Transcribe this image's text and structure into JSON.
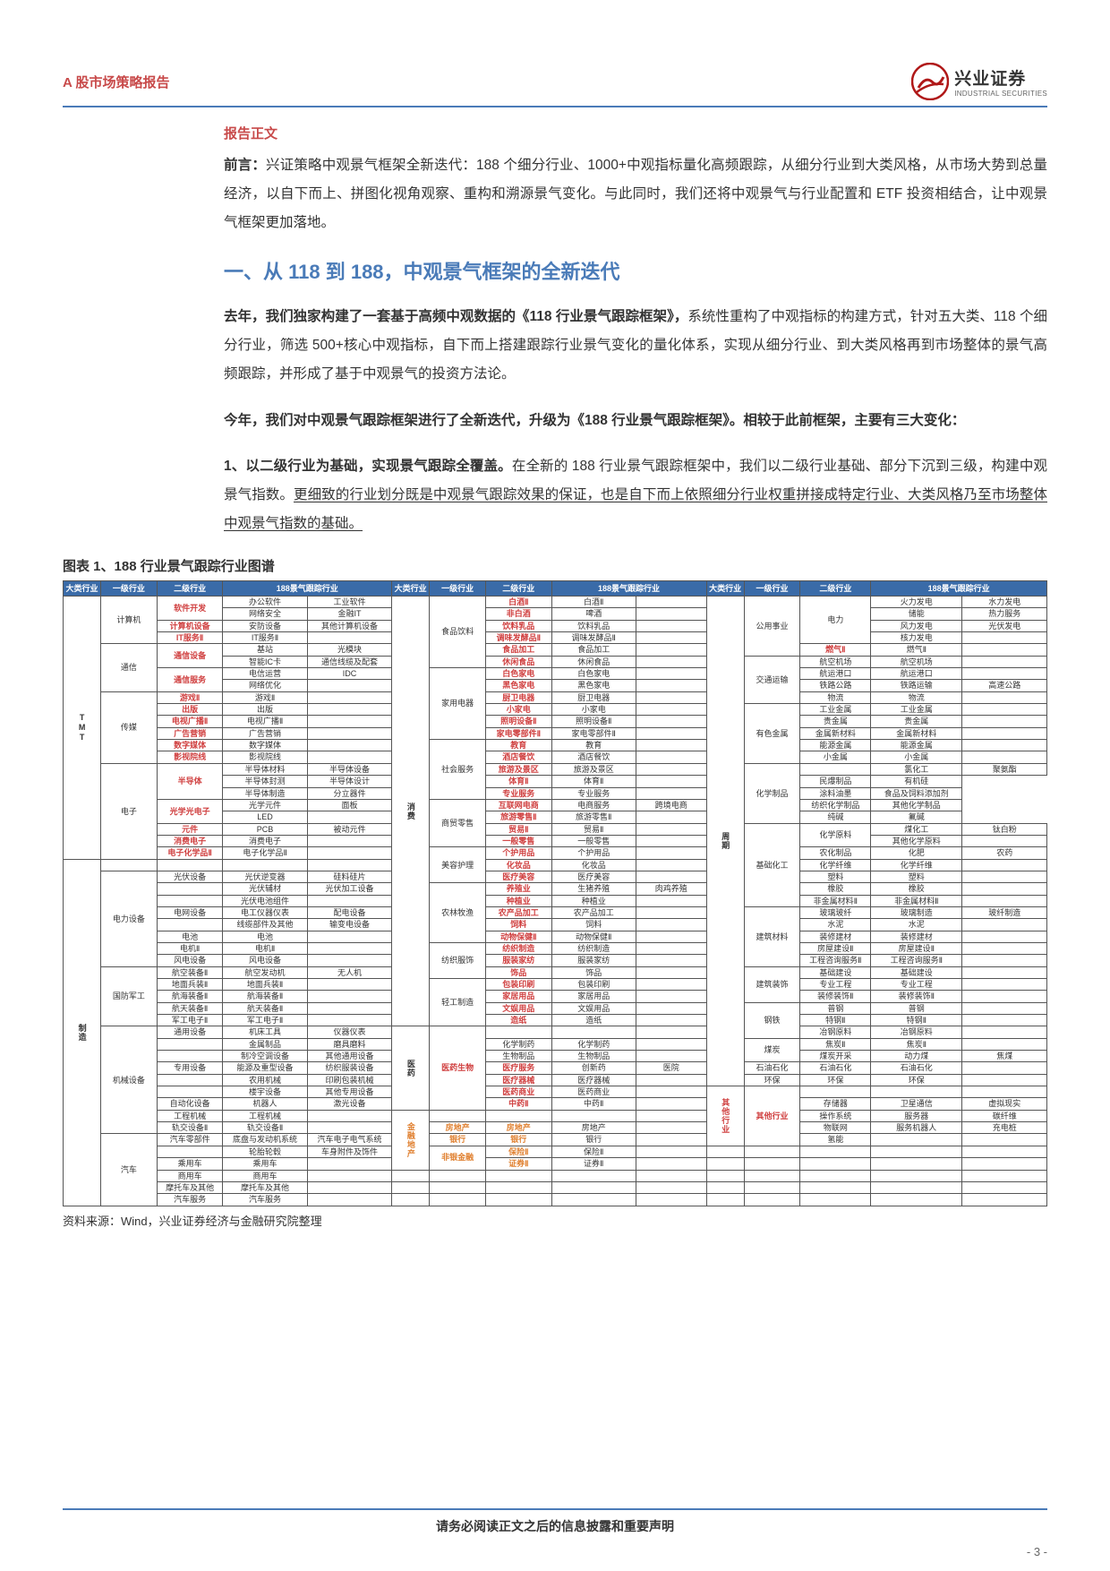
{
  "header": {
    "leftTitle": "A 股市场策略报告",
    "logo_cn": "兴业证券",
    "logo_en": "INDUSTRIAL SECURITIES"
  },
  "sectionLabel": "报告正文",
  "intro_prefix": "前言：",
  "intro": "兴证策略中观景气框架全新迭代：188 个细分行业、1000+中观指标量化高频跟踪，从细分行业到大类风格，从市场大势到总量经济，以自下而上、拼图化视角观察、重构和溯源景气变化。与此同时，我们还将中观景气与行业配置和 ETF 投资相结合，让中观景气框架更加落地。",
  "h1": "一、从 118 到 188，中观景气框架的全新迭代",
  "para1_lead": "去年，我们独家构建了一套基于高频中观数据的《118 行业景气跟踪框架》，",
  "para1_rest": "系统性重构了中观指标的构建方式，针对五大类、118 个细分行业，筛选 500+核心中观指标，自下而上搭建跟踪行业景气变化的量化体系，实现从细分行业、到大类风格再到市场整体的景气高频跟踪，并形成了基于中观景气的投资方法论。",
  "para2": "今年，我们对中观景气跟踪框架进行了全新迭代，升级为《188 行业景气跟踪框架》。相较于此前框架，主要有三大变化：",
  "para3_lead": "1、以二级行业为基础，实现景气跟踪全覆盖。",
  "para3_mid": "在全新的 188 行业景气跟踪框架中，我们以二级行业基础、部分下沉到三级，构建中观景气指数。",
  "para3_ul": "更细致的行业划分既是中观景气跟踪效果的保证，也是自下而上依照细分行业权重拼接成特定行业、大类风格乃至市场整体中观景气指数的基础。",
  "figureLabel": "图表 1、",
  "figureTitle": "188 行业景气跟踪行业图谱",
  "sourceNote": "资料来源：Wind，兴业证券经济与金融研究院整理",
  "footerDisclaimer": "请务必阅读正文之后的信息披露和重要声明",
  "pageNumber": "- 3 -",
  "table": {
    "headers": [
      "大类行业",
      "一级行业",
      "二级行业",
      "188景气跟踪行业",
      "",
      "大类行业",
      "一级行业",
      "二级行业",
      "188景气跟踪行业",
      "",
      "大类行业",
      "一级行业",
      "二级行业",
      "188景气跟踪行业",
      ""
    ],
    "blocks": [
      {
        "idx": 0,
        "big": "TMT",
        "rows": [
          {
            "l1": "计算机",
            "l1rs": 3,
            "l2": "软件开发",
            "l2cls": "red",
            "c3": "办公软件",
            "c4": "工业软件"
          },
          {
            "l2": "",
            "c3": "网络安全",
            "c4": "金融IT",
            "row2": true
          },
          {
            "l2": "计算机设备",
            "l2cls": "red",
            "c3": "安防设备",
            "c4": "其他计算机设备"
          },
          {
            "l2": "IT服务Ⅱ",
            "l2cls": "red",
            "c3": "IT服务Ⅱ",
            "c4": ""
          },
          {
            "l1": "通信",
            "l1rs": 3,
            "l2": "通信设备",
            "l2cls": "red",
            "c3": "基站",
            "c4": "光模块"
          },
          {
            "l2": "",
            "c3": "智能IC卡",
            "c4": "通信线缆及配套",
            "row2": true
          },
          {
            "l2": "通信服务",
            "l2cls": "red",
            "c3": "电信运营",
            "c4": "IDC"
          },
          {
            "l2": "",
            "c3": "网络优化",
            "c4": "",
            "row2": true
          },
          {
            "l1": "传媒",
            "l1rs": 6,
            "l2": "游戏Ⅱ",
            "l2cls": "red",
            "c3": "游戏Ⅱ",
            "c4": ""
          },
          {
            "l2": "出版",
            "l2cls": "red",
            "c3": "出版",
            "c4": ""
          },
          {
            "l2": "电视广播Ⅱ",
            "l2cls": "red",
            "c3": "电视广播Ⅱ",
            "c4": ""
          },
          {
            "l2": "广告营销",
            "l2cls": "red",
            "c3": "广告营销",
            "c4": ""
          },
          {
            "l2": "数字媒体",
            "l2cls": "red",
            "c3": "数字媒体",
            "c4": ""
          },
          {
            "l2": "影视院线",
            "l2cls": "red",
            "c3": "影视院线",
            "c4": ""
          },
          {
            "l1": "电子",
            "l1rs": 7,
            "l2": "半导体",
            "l2cls": "red",
            "c3": "半导体材料",
            "c4": "半导体设备"
          },
          {
            "l2": "",
            "c3": "半导体封测",
            "c4": "半导体设计",
            "row2": true
          },
          {
            "l2": "",
            "c3": "半导体制造",
            "c4": "分立器件",
            "row2": true
          },
          {
            "l2": "光学光电子",
            "l2cls": "red",
            "c3": "光学元件",
            "c4": "面板"
          },
          {
            "l2": "",
            "c3": "LED",
            "c4": "",
            "row2": true
          },
          {
            "l2": "元件",
            "l2cls": "red",
            "c3": "PCB",
            "c4": "被动元件"
          },
          {
            "l2": "消费电子",
            "l2cls": "red",
            "c3": "消费电子",
            "c4": ""
          },
          {
            "l2": "电子化学品Ⅱ",
            "l2cls": "red",
            "c3": "电子化学品Ⅱ",
            "c4": ""
          }
        ]
      },
      {
        "idx": 0,
        "big": "消费",
        "rows": [
          {
            "l1": "食品饮料",
            "l1rs": 6,
            "l2": "白酒Ⅱ",
            "l2cls": "red",
            "c3": "白酒Ⅱ",
            "c4": ""
          },
          {
            "l2": "非白酒",
            "l2cls": "red",
            "c3": "啤酒",
            "c4": ""
          },
          {
            "l2": "饮料乳品",
            "l2cls": "red",
            "c3": "饮料乳品",
            "c4": ""
          },
          {
            "l2": "调味发酵品Ⅱ",
            "l2cls": "red",
            "c3": "调味发酵品Ⅱ",
            "c4": ""
          },
          {
            "l2": "食品加工",
            "l2cls": "red",
            "c3": "食品加工",
            "c4": ""
          },
          {
            "l2": "休闲食品",
            "l2cls": "red",
            "c3": "休闲食品",
            "c4": ""
          },
          {
            "l1": "家用电器",
            "l1rs": 6,
            "l2": "白色家电",
            "l2cls": "red",
            "c3": "白色家电",
            "c4": ""
          },
          {
            "l2": "黑色家电",
            "l2cls": "red",
            "c3": "黑色家电",
            "c4": ""
          },
          {
            "l2": "厨卫电器",
            "l2cls": "red",
            "c3": "厨卫电器",
            "c4": ""
          },
          {
            "l2": "小家电",
            "l2cls": "red",
            "c3": "小家电",
            "c4": ""
          },
          {
            "l2": "照明设备Ⅱ",
            "l2cls": "red",
            "c3": "照明设备Ⅱ",
            "c4": ""
          },
          {
            "l2": "家电零部件Ⅱ",
            "l2cls": "red",
            "c3": "家电零部件Ⅱ",
            "c4": ""
          },
          {
            "l1": "社会服务",
            "l1rs": 4,
            "l2": "教育",
            "l2cls": "red",
            "c3": "教育",
            "c4": ""
          },
          {
            "l2": "酒店餐饮",
            "l2cls": "red",
            "c3": "酒店餐饮",
            "c4": ""
          },
          {
            "l2": "旅游及景区",
            "l2cls": "red",
            "c3": "旅游及景区",
            "c4": ""
          },
          {
            "l2": "体育Ⅱ",
            "l2cls": "red",
            "c3": "体育Ⅱ",
            "c4": ""
          },
          {
            "l2": "专业服务",
            "l2cls": "red",
            "c3": "专业服务",
            "c4": ""
          },
          {
            "l1": "商贸零售",
            "l1rs": 3,
            "l2": "互联网电商",
            "l2cls": "red",
            "c3": "电商服务",
            "c4": "跨境电商"
          },
          {
            "l2": "旅游零售Ⅱ",
            "l2cls": "red",
            "c3": "旅游零售Ⅱ",
            "c4": ""
          },
          {
            "l2": "贸易Ⅱ",
            "l2cls": "red",
            "c3": "贸易Ⅱ",
            "c4": ""
          },
          {
            "l2": "一般零售",
            "l2cls": "red",
            "c3": "一般零售",
            "c4": ""
          },
          {
            "l1": "美容护理",
            "l1rs": 3,
            "l2": "个护用品",
            "l2cls": "red",
            "c3": "个护用品",
            "c4": ""
          },
          {
            "l2": "化妆品",
            "l2cls": "red",
            "c3": "化妆品",
            "c4": ""
          },
          {
            "l2": "医疗美容",
            "l2cls": "red",
            "c3": "医疗美容",
            "c4": ""
          },
          {
            "l1": "农林牧渔",
            "l1rs": 4,
            "l2": "养殖业",
            "l2cls": "red",
            "c3": "生猪养殖",
            "c4": "肉鸡养殖"
          },
          {
            "l2": "种植业",
            "l2cls": "red",
            "c3": "种植业",
            "c4": ""
          },
          {
            "l2": "农产品加工",
            "l2cls": "red",
            "c3": "农产品加工",
            "c4": ""
          },
          {
            "l2": "饲料",
            "l2cls": "red",
            "c3": "饲料",
            "c4": ""
          },
          {
            "l2": "动物保健Ⅱ",
            "l2cls": "red",
            "c3": "动物保健Ⅱ",
            "c4": ""
          },
          {
            "l1": "纺织服饰",
            "l1rs": 3,
            "l2": "纺织制造",
            "l2cls": "red",
            "c3": "纺织制造",
            "c4": ""
          },
          {
            "l2": "服装家纺",
            "l2cls": "red",
            "c3": "服装家纺",
            "c4": ""
          },
          {
            "l2": "饰品",
            "l2cls": "red",
            "c3": "饰品",
            "c4": ""
          },
          {
            "l1": "轻工制造",
            "l1rs": 3,
            "l2": "包装印刷",
            "l2cls": "red",
            "c3": "包装印刷",
            "c4": ""
          },
          {
            "l2": "家居用品",
            "l2cls": "red",
            "c3": "家居用品",
            "c4": ""
          },
          {
            "l2": "文娱用品",
            "l2cls": "red",
            "c3": "文娱用品",
            "c4": ""
          },
          {
            "l2": "造纸",
            "l2cls": "red",
            "c3": "造纸",
            "c4": ""
          }
        ]
      },
      {
        "idx": 0,
        "big": "周期",
        "rows": [
          {
            "l1": "公用事业",
            "l1rs": 3,
            "l2": "电力",
            "l2cls": "",
            "c3": "火力发电",
            "c4": "水力发电"
          },
          {
            "l2": "",
            "c3": "储能",
            "c4": "热力服务",
            "row2": true
          },
          {
            "l2": "",
            "c3": "风力发电",
            "c4": "光伏发电",
            "row2": true
          },
          {
            "l2": "",
            "c3": "核力发电",
            "c4": "",
            "row2": true
          },
          {
            "l2": "燃气Ⅱ",
            "l2cls": "red",
            "c3": "燃气Ⅱ",
            "c4": ""
          },
          {
            "l1": "交通运输",
            "l1rs": 3,
            "l2": "航空机场",
            "l2cls": "",
            "c3": "航空机场",
            "c4": ""
          },
          {
            "l2": "航运港口",
            "l2cls": "",
            "c3": "航运港口",
            "c4": ""
          },
          {
            "l2": "铁路公路",
            "l2cls": "",
            "c3": "铁路运输",
            "c4": "高速公路"
          },
          {
            "l2": "物流",
            "l2cls": "",
            "c3": "物流",
            "c4": ""
          },
          {
            "l1": "有色金属",
            "l1rs": 4,
            "l2": "工业金属",
            "l2cls": "",
            "c3": "工业金属",
            "c4": ""
          },
          {
            "l2": "贵金属",
            "l2cls": "",
            "c3": "贵金属",
            "c4": ""
          },
          {
            "l2": "金属新材料",
            "l2cls": "",
            "c3": "金属新材料",
            "c4": ""
          },
          {
            "l2": "能源金属",
            "l2cls": "",
            "c3": "能源金属",
            "c4": ""
          },
          {
            "l2": "小金属",
            "l2cls": "",
            "c3": "小金属",
            "c4": ""
          },
          {
            "l1": "化学制品",
            "l1rs": 4,
            "l2": "",
            "c3": "氯化工",
            "c4": "聚氨酯"
          },
          {
            "l2": "",
            "c3": "民爆制品",
            "c4": "有机硅",
            "row2": true
          },
          {
            "l2": "",
            "c3": "涂料油墨",
            "c4": "食品及饲料添加剂",
            "row2": true
          },
          {
            "l2": "",
            "c3": "纺织化学制品",
            "c4": "其他化学制品",
            "row2": true
          },
          {
            "l2": "",
            "c3": "纯碱",
            "c4": "氟碱",
            "row2": true
          },
          {
            "l1": "基础化工",
            "l1rs": 7,
            "l2": "化学原料",
            "l2cls": "",
            "c3": "煤化工",
            "c4": "钛白粉"
          },
          {
            "l2": "",
            "c3": "其他化学原料",
            "c4": "",
            "row2": true
          },
          {
            "l2": "农化制品",
            "l2cls": "",
            "c3": "化肥",
            "c4": "农药"
          },
          {
            "l2": "化学纤维",
            "l2cls": "",
            "c3": "化学纤维",
            "c4": ""
          },
          {
            "l2": "塑料",
            "l2cls": "",
            "c3": "塑料",
            "c4": ""
          },
          {
            "l2": "橡胶",
            "l2cls": "",
            "c3": "橡胶",
            "c4": ""
          },
          {
            "l2": "非金属材料Ⅱ",
            "l2cls": "",
            "c3": "非金属材料Ⅱ",
            "c4": ""
          },
          {
            "l1": "建筑材料",
            "l1rs": 4,
            "l2": "玻璃玻纤",
            "l2cls": "",
            "c3": "玻璃制造",
            "c4": "玻纤制造"
          },
          {
            "l2": "水泥",
            "l2cls": "",
            "c3": "水泥",
            "c4": ""
          },
          {
            "l2": "装修建材",
            "l2cls": "",
            "c3": "装修建材",
            "c4": ""
          },
          {
            "l2": "房屋建设Ⅱ",
            "l2cls": "",
            "c3": "房屋建设Ⅱ",
            "c4": ""
          },
          {
            "l2": "工程咨询服务Ⅱ",
            "c3": "工程咨询服务Ⅱ",
            "c4": ""
          },
          {
            "l1": "建筑装饰",
            "l1rs": 3,
            "l2": "基础建设",
            "l2cls": "",
            "c3": "基础建设",
            "c4": ""
          },
          {
            "l2": "专业工程",
            "l2cls": "",
            "c3": "专业工程",
            "c4": ""
          },
          {
            "l2": "装修装饰Ⅱ",
            "l2cls": "",
            "c3": "装修装饰Ⅱ",
            "c4": ""
          },
          {
            "l1": "钢铁",
            "l1rs": 3,
            "l2": "普钢",
            "l2cls": "",
            "c3": "普钢",
            "c4": ""
          },
          {
            "l2": "特钢Ⅱ",
            "l2cls": "",
            "c3": "特钢Ⅱ",
            "c4": ""
          },
          {
            "l2": "冶钢原料",
            "l2cls": "",
            "c3": "冶钢原料",
            "c4": ""
          },
          {
            "l1": "煤炭",
            "l1rs": 2,
            "l2": "焦炭Ⅱ",
            "l2cls": "",
            "c3": "焦炭Ⅱ",
            "c4": ""
          },
          {
            "l2": "煤炭开采",
            "l2cls": "",
            "c3": "动力煤",
            "c4": "焦煤"
          },
          {
            "l1": "石油石化",
            "l1rs": 1,
            "l2": "石油石化",
            "l2cls": "",
            "c3": "石油石化",
            "c4": ""
          },
          {
            "l1": "环保",
            "l1rs": 1,
            "l2": "环保",
            "l2cls": "",
            "c3": "环保",
            "c4": ""
          }
        ]
      }
    ],
    "manufRows": [
      {
        "l1": "电力设备",
        "l1rs": 6,
        "l2": "光伏设备",
        "c3": "光伏逆变器",
        "c4": "硅料硅片"
      },
      {
        "l2": "",
        "c3": "光伏辅材",
        "c4": "光伏加工设备"
      },
      {
        "l2": "",
        "c3": "光伏电池组件",
        "c4": ""
      },
      {
        "l2": "电网设备",
        "c3": "电工仪器仪表",
        "c4": "配电设备"
      },
      {
        "l2": "",
        "c3": "线缆部件及其他",
        "c4": "输变电设备"
      },
      {
        "l2": "电池",
        "c3": "电池",
        "c4": ""
      },
      {
        "l2": "电机Ⅱ",
        "c3": "电机Ⅱ",
        "c4": ""
      },
      {
        "l2": "风电设备",
        "c3": "风电设备",
        "c4": ""
      },
      {
        "l1": "国防军工",
        "l1rs": 5,
        "l2": "航空装备Ⅱ",
        "c3": "航空发动机",
        "c4": "无人机"
      },
      {
        "l2": "地面兵装Ⅱ",
        "c3": "地面兵装Ⅱ",
        "c4": ""
      },
      {
        "l2": "航海装备Ⅱ",
        "c3": "航海装备Ⅱ",
        "c4": ""
      },
      {
        "l2": "航天装备Ⅱ",
        "c3": "航天装备Ⅱ",
        "c4": ""
      },
      {
        "l2": "军工电子Ⅱ",
        "c3": "军工电子Ⅱ",
        "c4": ""
      },
      {
        "l1": "机械设备",
        "l1rs": 7,
        "l2": "通用设备",
        "c3": "机床工具",
        "c4": "仪器仪表"
      },
      {
        "l2": "",
        "c3": "金属制品",
        "c4": "磨具磨料"
      },
      {
        "l2": "",
        "c3": "制冷空调设备",
        "c4": "其他通用设备"
      },
      {
        "l2": "专用设备",
        "c3": "能源及重型设备",
        "c4": "纺织服装设备"
      },
      {
        "l2": "",
        "c3": "农用机械",
        "c4": "印刷包装机械"
      },
      {
        "l2": "",
        "c3": "楼宇设备",
        "c4": "其他专用设备"
      },
      {
        "l2": "自动化设备",
        "c3": "机器人",
        "c4": "激光设备"
      },
      {
        "l2": "工程机械",
        "c3": "工程机械",
        "c4": ""
      },
      {
        "l2": "轨交设备Ⅱ",
        "c3": "轨交设备Ⅱ",
        "c4": ""
      },
      {
        "l1": "汽车",
        "l1rs": 5,
        "l2": "汽车零部件",
        "c3": "底盘与发动机系统",
        "c4": "汽车电子电气系统"
      },
      {
        "l2": "",
        "c3": "轮胎轮毂",
        "c4": "车身附件及饰件"
      },
      {
        "l2": "乘用车",
        "c3": "乘用车",
        "c4": ""
      },
      {
        "l2": "商用车",
        "c3": "商用车",
        "c4": ""
      },
      {
        "l2": "摩托车及其他",
        "c3": "摩托车及其他",
        "c4": ""
      },
      {
        "l2": "汽车服务",
        "c3": "汽车服务",
        "c4": ""
      }
    ],
    "medRows": [
      {
        "l2": "化学制药",
        "c3": "化学制药",
        "c4": ""
      },
      {
        "l2": "生物制品",
        "c3": "生物制品",
        "c4": ""
      },
      {
        "l2": "医疗服务",
        "l2cls": "red",
        "c3": "创新药",
        "c4": "医院"
      },
      {
        "l2": "医疗器械",
        "l2cls": "red",
        "c3": "医疗器械",
        "c4": ""
      },
      {
        "l2": "医药商业",
        "l2cls": "red",
        "c3": "医药商业",
        "c4": ""
      },
      {
        "l2": "中药Ⅱ",
        "l2cls": "red",
        "c3": "中药Ⅱ",
        "c4": ""
      }
    ],
    "finRows": [
      {
        "l1": "房地产",
        "l1cls": "orange",
        "l2": "房地产",
        "l2cls": "orange",
        "c3": "房地产",
        "c4": ""
      },
      {
        "l1": "银行",
        "l1cls": "orange",
        "l2": "银行",
        "l2cls": "orange",
        "c3": "银行",
        "c4": ""
      },
      {
        "l1": "非银金融",
        "l1cls": "orange",
        "l2": "保险Ⅱ",
        "l2cls": "orange",
        "c3": "保险Ⅱ",
        "c4": ""
      },
      {
        "l2": "证券Ⅱ",
        "l2cls": "orange",
        "c3": "证券Ⅱ",
        "c4": ""
      }
    ],
    "otherRows": [
      {
        "l2": "存储器",
        "c3": "卫星通信",
        "c4": "虚拟现实"
      },
      {
        "l2": "操作系统",
        "c3": "服务器",
        "c4": "碳纤维"
      },
      {
        "l2": "物联网",
        "c3": "服务机器人",
        "c4": "充电桩"
      },
      {
        "l2": "氢能",
        "c3": "",
        "c4": ""
      }
    ]
  }
}
